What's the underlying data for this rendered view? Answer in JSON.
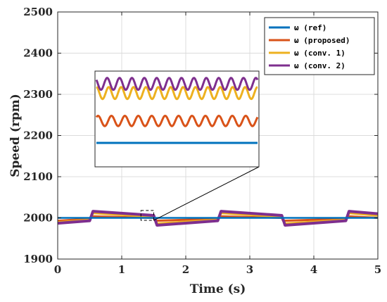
{
  "chart_data": {
    "type": "line",
    "xlabel": "Time (s)",
    "ylabel": "Speed (rpm)",
    "xlim": [
      0,
      5
    ],
    "ylim": [
      1900,
      2500
    ],
    "xticks": [
      0,
      1,
      2,
      3,
      4,
      5
    ],
    "yticks": [
      1900,
      2000,
      2100,
      2200,
      2300,
      2400,
      2500
    ],
    "grid": true,
    "legend_position": "top-right",
    "series": [
      {
        "name": "ω (ref)",
        "color": "#0072BD",
        "x": [
          0,
          5
        ],
        "y": [
          2000,
          2000
        ]
      },
      {
        "name": "ω (proposed)",
        "color": "#D95319",
        "x": [
          0,
          0.5,
          0.52,
          1.5,
          1.52,
          2.5,
          2.52,
          3.5,
          3.52,
          4.5,
          4.52,
          5
        ],
        "y": [
          1993,
          1998,
          2004,
          2000,
          1993,
          1998,
          2004,
          2000,
          1993,
          1998,
          2004,
          2000
        ]
      },
      {
        "name": "ω (conv. 1)",
        "color": "#EDB120",
        "x": [
          0,
          0.5,
          0.55,
          1.5,
          1.55,
          2.5,
          2.55,
          3.5,
          3.55,
          4.5,
          4.55,
          5
        ],
        "y": [
          1989,
          1995,
          2012,
          2003,
          1986,
          1995,
          2012,
          2003,
          1986,
          1995,
          2012,
          2006
        ]
      },
      {
        "name": "ω (conv. 2)",
        "color": "#7E2F8E",
        "x": [
          0,
          0.5,
          0.55,
          1.5,
          1.55,
          2.5,
          2.55,
          3.5,
          3.55,
          4.5,
          4.55,
          5
        ],
        "y": [
          1987,
          1993,
          2016,
          2006,
          1982,
          1993,
          2016,
          2006,
          1982,
          1993,
          2016,
          2010
        ]
      }
    ],
    "inset": {
      "x_range": [
        1.3,
        1.5
      ],
      "y_range": [
        1994,
        2018
      ],
      "series": [
        {
          "name": "ω (ref)",
          "color": "#0072BD",
          "center": 2000,
          "amplitude": 0,
          "cycles": 0
        },
        {
          "name": "ω (proposed)",
          "color": "#D95319",
          "center": 2005.5,
          "amplitude": 1.3,
          "cycles": 12
        },
        {
          "name": "ω (conv. 1)",
          "color": "#EDB120",
          "center": 2012.5,
          "amplitude": 1.5,
          "cycles": 13
        },
        {
          "name": "ω (conv. 2)",
          "color": "#7E2F8E",
          "center": 2014.8,
          "amplitude": 1.5,
          "cycles": 13
        }
      ]
    }
  }
}
